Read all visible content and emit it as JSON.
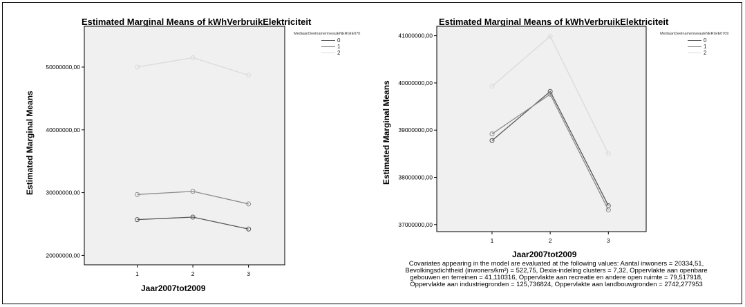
{
  "chart_data": [
    {
      "type": "line",
      "title": "Estimated Marginal Means of kWhVerbruikElektriciteit",
      "xlabel": "Jaar2007tot2009",
      "ylabel": "Estimated Marginal Means",
      "x": [
        1,
        2,
        3
      ],
      "ylim": [
        18500000,
        56500000
      ],
      "y_ticks": [
        20000000,
        30000000,
        40000000,
        50000000
      ],
      "y_tick_labels": [
        "20000000,00",
        "30000000,00",
        "40000000,00",
        "50000000,00"
      ],
      "legend_title": "MediaanDeelnameniveauENERGIE070",
      "legend_position": "top-right",
      "series": [
        {
          "name": "0",
          "color": "#555555",
          "values": [
            25700000,
            26100000,
            24200000
          ]
        },
        {
          "name": "1",
          "color": "#8c8c8c",
          "values": [
            29700000,
            30200000,
            28200000
          ]
        },
        {
          "name": "2",
          "color": "#dadada",
          "values": [
            50000000,
            51500000,
            48700000
          ]
        }
      ]
    },
    {
      "type": "line",
      "title": "Estimated Marginal Means of kWhVerbruikElektriciteit",
      "xlabel": "Jaar2007tot2009",
      "ylabel": "Estimated Marginal Means",
      "x": [
        1,
        2,
        3
      ],
      "ylim": [
        36850000,
        41200000
      ],
      "y_ticks": [
        37000000,
        38000000,
        39000000,
        40000000,
        41000000
      ],
      "y_tick_labels": [
        "37000000,00",
        "38000000,00",
        "39000000,00",
        "40000000,00",
        "41000000,00"
      ],
      "legend_title": "MediaanDeelnameniveauENERGIE0709",
      "legend_position": "top-right",
      "series": [
        {
          "name": "0",
          "color": "#555555",
          "values": [
            38780000,
            39820000,
            37400000
          ]
        },
        {
          "name": "1",
          "color": "#8c8c8c",
          "values": [
            38920000,
            39760000,
            37310000
          ]
        },
        {
          "name": "2",
          "color": "#dadada",
          "values": [
            39930000,
            40990000,
            38500000
          ]
        }
      ]
    }
  ],
  "footnote": [
    "Covariates appearing in the model are evaluated at the following values: Aantal inwoners = 20334,51,",
    "Bevolkingsdichtheid (inwoners/km²) = 522,75, Dexia-indeling clusters = 7,32, Oppervlakte aan openbare",
    "gebouwen en terreinen = 41,110316, Oppervlakte aan recreatie en andere open ruimte = 79,517918,",
    "Oppervlakte aan industriegronden = 125,736824, Oppervlakte aan landbouwgronden = 2742,277953"
  ]
}
